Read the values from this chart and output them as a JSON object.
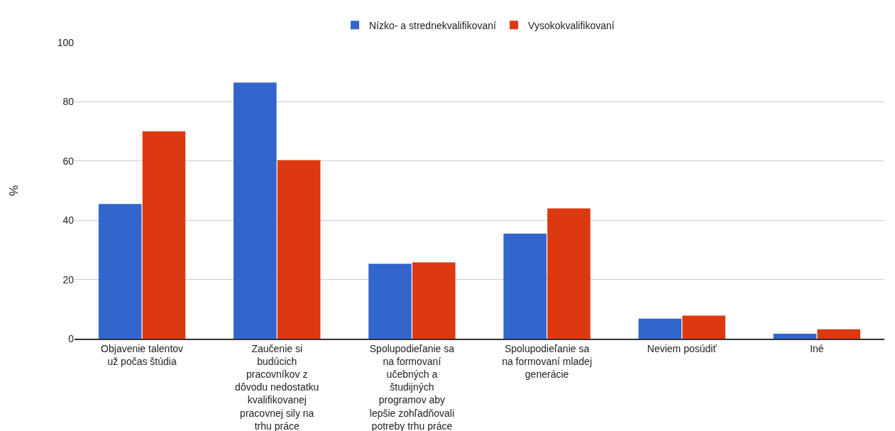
{
  "chart_data": {
    "type": "bar",
    "ylabel": "%",
    "categories": [
      "Objavenie talentov už počas štúdia",
      "Zaučenie si budúcich pracovníkov z dôvodu nedostatku kvalifikovanej pracovnej sily na trhu práce",
      "Spolupodieľanie sa na formovaní učebných a študijných programov aby lepšie zohľadňovali potreby trhu práce",
      "Spolupodieľanie sa na formovaní mladej generácie",
      "Neviem posúdiť",
      "Iné"
    ],
    "series": [
      {
        "name": "Nízko- a strednekvalifikovaní",
        "color": "#3366cc",
        "values": [
          45.5,
          86.5,
          25.3,
          35.5,
          6.8,
          1.7
        ]
      },
      {
        "name": "Vysokokvalifikovaní",
        "color": "#dc3912",
        "values": [
          70,
          60.3,
          25.8,
          44,
          7.8,
          3.2
        ]
      }
    ],
    "ylim": [
      0,
      100
    ],
    "yticks": [
      0,
      20,
      40,
      60,
      80,
      100
    ],
    "grid": "y",
    "legend": "top"
  }
}
